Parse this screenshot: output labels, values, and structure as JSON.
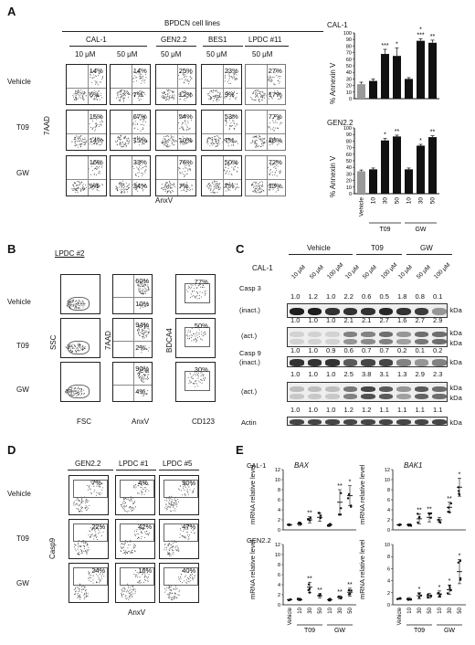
{
  "panels": {
    "A": {
      "letter": "A",
      "header": "BPDCN cell lines",
      "groups": [
        "CAL-1",
        "GEN2.2",
        "BES1",
        "LPDC #11"
      ],
      "concs": [
        "10 μM",
        "50 μM",
        "50 μM",
        "50 μM",
        "50 μM"
      ],
      "rows": [
        "Vehicle",
        "T09",
        "GW"
      ],
      "ylabel": "7AAD",
      "xlabel": "AnxV",
      "pcts": [
        [
          [
            "14%",
            "6%"
          ],
          [
            "14%",
            "7%"
          ],
          [
            "25%",
            "12%"
          ],
          [
            "23%",
            "9%"
          ],
          [
            "27%",
            "17%"
          ]
        ],
        [
          [
            "15%",
            "14%"
          ],
          [
            "67%",
            "15%"
          ],
          [
            "54%",
            "10%"
          ],
          [
            "53%",
            "7%"
          ],
          [
            "77%",
            "18%"
          ]
        ],
        [
          [
            "16%",
            "9%"
          ],
          [
            "33%",
            "34%"
          ],
          [
            "76%",
            "7%"
          ],
          [
            "50%",
            "7%"
          ],
          [
            "72%",
            "13%"
          ]
        ]
      ]
    },
    "A_right": {
      "charts": [
        {
          "title": "CAL-1",
          "ylabel": "% Annexin V",
          "yticks": [
            "0",
            "10",
            "20",
            "30",
            "40",
            "50",
            "60",
            "70",
            "80",
            "90",
            "100"
          ],
          "stars": [
            "",
            "",
            "***",
            "*",
            "",
            "*\n***",
            "**"
          ]
        },
        {
          "title": "GEN2.2",
          "ylabel": "% Annexin V",
          "yticks": [
            "0",
            "10",
            "20",
            "30",
            "40",
            "50",
            "60",
            "70",
            "80",
            "90",
            "100"
          ],
          "stars": [
            "",
            "",
            "*",
            "**",
            "",
            "*",
            "**"
          ]
        }
      ],
      "xcats": [
        "Vehicle",
        "10",
        "30",
        "50",
        "10",
        "30",
        "50"
      ],
      "groups": [
        "T09",
        "GW"
      ]
    },
    "B": {
      "letter": "B",
      "sample": "LPDC #2",
      "rows": [
        "Vehicle",
        "T09",
        "GW"
      ],
      "col1_y": "SSC",
      "col1_x": "FSC",
      "col2_y": "7AAD",
      "col2_x": "AnxV",
      "col3_y": "BDCA4",
      "col3_x": "CD123",
      "col2_pcts": [
        [
          "60%",
          "10%"
        ],
        [
          "94%",
          "2%"
        ],
        [
          "90%",
          "4%"
        ]
      ],
      "col3_pcts": [
        "77%",
        "50%",
        "30%"
      ]
    },
    "C": {
      "letter": "C",
      "groups": [
        "Vehicle",
        "T09",
        "GW"
      ],
      "sample": "CAL-1",
      "lanes": [
        "10 μM",
        "50 μM",
        "100 μM",
        "10 μM",
        "50 μM",
        "100 μM",
        "10 μM",
        "50 μM",
        "100 μM"
      ],
      "casp3": "Casp 3",
      "inact": "(inact.)",
      "act": "(act.)",
      "casp9": "Casp 9",
      "actin": "Actin",
      "q1": [
        "1.0",
        "1.2",
        "1.0",
        "2.2",
        "0.6",
        "0.5",
        "1.8",
        "0.8",
        "0.1"
      ],
      "q2": [
        "1.0",
        "1.0",
        "1.0",
        "2.1",
        "2.1",
        "2.7",
        "1.6",
        "2.7",
        "2.9"
      ],
      "q3": [
        "1.0",
        "1.0",
        "0.9",
        "0.6",
        "0.7",
        "0.7",
        "0.2",
        "0.1",
        "0.2"
      ],
      "q4": [
        "1.0",
        "1.0",
        "1.0",
        "2.5",
        "3.8",
        "3.1",
        "1.3",
        "2.9",
        "2.3"
      ],
      "q5": [
        "1.0",
        "1.0",
        "1.0",
        "1.2",
        "1.2",
        "1.1",
        "1.1",
        "1.1",
        "1.1"
      ],
      "kda": [
        "35 kDa",
        "19 kDa",
        "17 kDa",
        "47 kDa",
        "37 kDa",
        "35 kDa",
        "43 kDa"
      ]
    },
    "D": {
      "letter": "D",
      "groups": [
        "GEN2.2",
        "LPDC #1",
        "LPDC #5"
      ],
      "rows": [
        "Vehicle",
        "T09",
        "GW"
      ],
      "ylabel": "Casp9",
      "xlabel": "AnxV",
      "pcts": [
        [
          "7%",
          "4%",
          "30%"
        ],
        [
          "22%",
          "42%",
          "47%"
        ],
        [
          "24%",
          "16%",
          "40%"
        ]
      ]
    },
    "E": {
      "letter": "E",
      "rows": [
        "CAL-1",
        "GEN2.2"
      ],
      "genes": [
        "BAX",
        "BAK1"
      ],
      "ylabel": "mRNA\nrelative level",
      "xcats": [
        "Vehicle",
        "10",
        "30",
        "50",
        "10",
        "30",
        "50"
      ],
      "groups": [
        "T09",
        "GW"
      ],
      "yt_cal1_bax": [
        "0",
        "2",
        "4",
        "6",
        "8",
        "10",
        "12"
      ],
      "yt_cal1_bak1": [
        "0",
        "2",
        "4",
        "6",
        "8",
        "10",
        "12"
      ],
      "yt_gen_bax": [
        "0",
        "2",
        "4",
        "6",
        "8",
        "10",
        "12"
      ],
      "yt_gen_bak1": [
        "0",
        "2",
        "4",
        "6",
        "8",
        "10"
      ]
    }
  },
  "chart_data": [
    {
      "type": "bar",
      "title": "CAL-1",
      "ylabel": "% Annexin V",
      "categories": [
        "Vehicle",
        "T09 10",
        "T09 30",
        "T09 50",
        "GW 10",
        "GW 30",
        "GW 50"
      ],
      "values": [
        22,
        27,
        68,
        65,
        30,
        88,
        85
      ],
      "errors": [
        3,
        3,
        7,
        12,
        2,
        3,
        4
      ],
      "colors": [
        "#999999",
        "#111111",
        "#111111",
        "#111111",
        "#111111",
        "#111111",
        "#111111"
      ],
      "ylim": [
        0,
        100
      ]
    },
    {
      "type": "bar",
      "title": "GEN2.2",
      "ylabel": "% Annexin V",
      "categories": [
        "Vehicle",
        "T09 10",
        "T09 30",
        "T09 50",
        "GW 10",
        "GW 30",
        "GW 50"
      ],
      "values": [
        34,
        37,
        81,
        87,
        37,
        73,
        86
      ],
      "errors": [
        2,
        2,
        3,
        2,
        2,
        2,
        2
      ],
      "colors": [
        "#999999",
        "#111111",
        "#111111",
        "#111111",
        "#111111",
        "#111111",
        "#111111"
      ],
      "ylim": [
        0,
        100
      ]
    },
    {
      "type": "scatter",
      "title": "CAL-1 BAX",
      "ylabel": "mRNA relative level",
      "categories": [
        "Vehicle",
        "T09 10",
        "T09 30",
        "T09 50",
        "GW 10",
        "GW 30",
        "GW 50"
      ],
      "means": [
        1.0,
        1.2,
        2.0,
        2.5,
        1.0,
        5.5,
        6.8
      ],
      "sem": [
        0.1,
        0.3,
        0.6,
        0.8,
        0.2,
        2.5,
        2.0
      ],
      "stars": [
        "",
        "",
        "**",
        "",
        "",
        "**",
        "*"
      ],
      "ylim": [
        0,
        12
      ]
    },
    {
      "type": "scatter",
      "title": "CAL-1 BAK1",
      "ylabel": "mRNA relative level",
      "categories": [
        "Vehicle",
        "T09 10",
        "T09 30",
        "T09 50",
        "GW 10",
        "GW 30",
        "GW 50"
      ],
      "means": [
        1.0,
        1.0,
        2.2,
        2.5,
        2.0,
        4.5,
        8.5
      ],
      "sem": [
        0.1,
        0.2,
        1.0,
        0.9,
        0.5,
        1.0,
        1.8
      ],
      "stars": [
        "",
        "",
        "**",
        "**",
        "",
        "**",
        "*"
      ],
      "ylim": [
        0,
        12
      ]
    },
    {
      "type": "scatter",
      "title": "GEN2.2 BAX",
      "ylabel": "mRNA relative level",
      "categories": [
        "Vehicle",
        "T09 10",
        "T09 30",
        "T09 50",
        "GW 10",
        "GW 30",
        "GW 50"
      ],
      "means": [
        1.0,
        1.0,
        3.5,
        1.8,
        1.0,
        1.5,
        2.5
      ],
      "sem": [
        0.1,
        0.2,
        1.0,
        0.4,
        0.2,
        0.3,
        0.8
      ],
      "stars": [
        "",
        "",
        "**",
        "**",
        "",
        "**",
        "**"
      ],
      "ylim": [
        0,
        12
      ]
    },
    {
      "type": "scatter",
      "title": "GEN2.2 BAK1",
      "ylabel": "mRNA relative level",
      "categories": [
        "Vehicle",
        "T09 10",
        "T09 30",
        "T09 50",
        "GW 10",
        "GW 30",
        "GW 50"
      ],
      "means": [
        1.0,
        1.0,
        1.5,
        1.5,
        1.8,
        2.5,
        5.5
      ],
      "sem": [
        0.1,
        0.2,
        0.5,
        0.4,
        0.5,
        0.8,
        2.0
      ],
      "stars": [
        "",
        "",
        "*",
        "",
        "*",
        "*",
        "*"
      ],
      "ylim": [
        0,
        10
      ]
    }
  ]
}
